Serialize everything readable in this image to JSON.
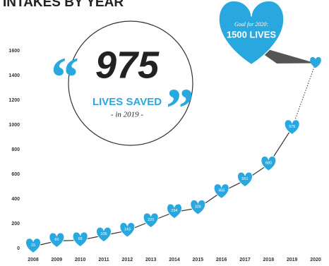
{
  "chart_data": {
    "type": "line",
    "title": "INTAKES BY YEAR",
    "categories": [
      "2008",
      "2009",
      "2010",
      "2011",
      "2012",
      "2013",
      "2014",
      "2015",
      "2016",
      "2017",
      "2018",
      "2019",
      "2020"
    ],
    "values": [
      15,
      60,
      66,
      105,
      143,
      220,
      294,
      326,
      456,
      551,
      680,
      975,
      null
    ],
    "color": "#29a8e0",
    "goal": {
      "value": 1500,
      "label": "Goal for 2020:",
      "text": "1500 LIVES"
    },
    "callout": {
      "open_quote": "“",
      "number": "975",
      "caption": "LIVES SAVED",
      "subcaption": "- in 2019 -",
      "close_quote": "”"
    },
    "ylim": [
      0,
      1600
    ],
    "yticks": [
      0,
      200,
      400,
      600,
      800,
      1000,
      1200,
      1400,
      1600
    ],
    "grid": false
  }
}
